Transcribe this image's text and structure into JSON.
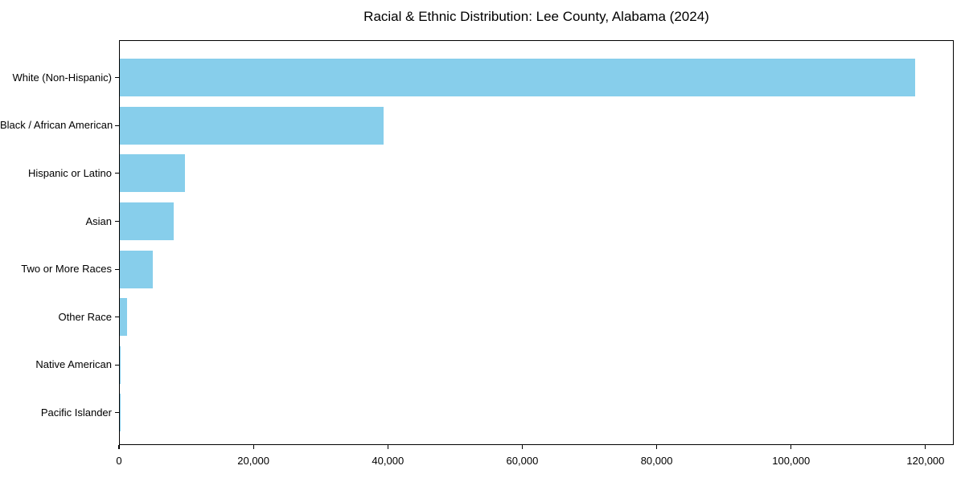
{
  "title": "Racial & Ethnic Distribution: Lee County, Alabama (2024)",
  "colors": {
    "bar": "#87CEEB",
    "axis": "#000000",
    "background": "#FFFFFF",
    "text": "#000000"
  },
  "chart_data": {
    "type": "bar",
    "orientation": "horizontal",
    "title": "Racial & Ethnic Distribution: Lee County, Alabama (2024)",
    "xlabel": "",
    "ylabel": "",
    "categories": [
      "White (Non-Hispanic)",
      "Black / African American",
      "Hispanic or Latino",
      "Asian",
      "Two or More Races",
      "Other Race",
      "Native American",
      "Pacific Islander"
    ],
    "values": [
      118300,
      39300,
      9700,
      8000,
      4900,
      1100,
      150,
      50
    ],
    "bar_color": "#87CEEB",
    "xlim": [
      0,
      124200
    ],
    "x_ticks": [
      0,
      20000,
      40000,
      60000,
      80000,
      100000,
      120000
    ],
    "x_tick_labels": [
      "0",
      "20,000",
      "40,000",
      "60,000",
      "80,000",
      "100,000",
      "120,000"
    ],
    "grid": false,
    "legend": false
  }
}
